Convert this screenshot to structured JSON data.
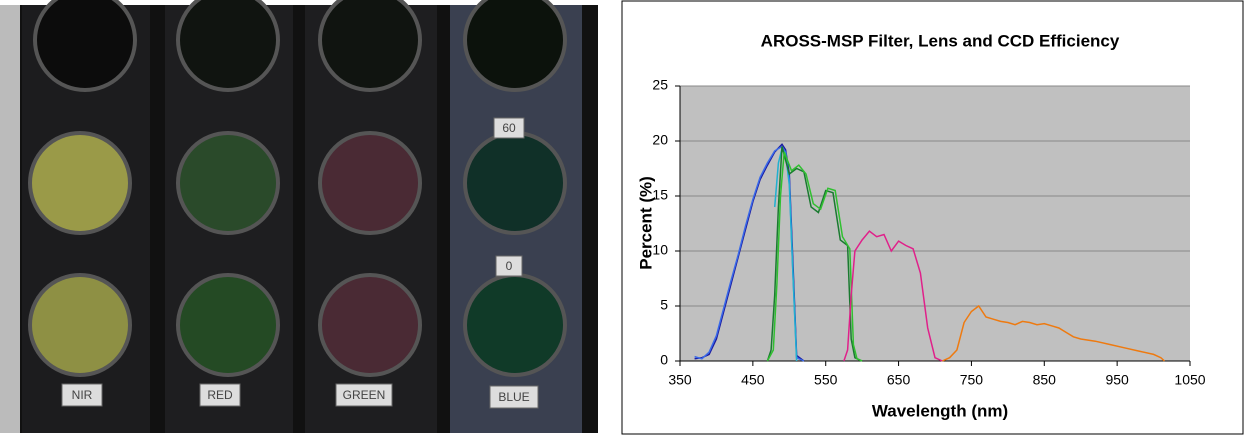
{
  "photo": {
    "labels": [
      "NIR",
      "RED",
      "GREEN",
      "BLUE",
      "60",
      "0"
    ]
  },
  "chart_data": {
    "type": "line",
    "title": "AROSS-MSP Filter, Lens and CCD Efficiency",
    "x_label": "Wavelength (nm)",
    "y_label": "Percent (%)",
    "xlim": [
      350,
      1050
    ],
    "xticks": [
      350,
      450,
      550,
      650,
      750,
      850,
      950,
      1050
    ],
    "ylim": [
      0,
      25
    ],
    "yticks": [
      0,
      5,
      10,
      15,
      20,
      25
    ],
    "grid": true,
    "series": [
      {
        "color": "#1a1aa0",
        "x": [
          370,
          380,
          390,
          400,
          410,
          420,
          430,
          440,
          450,
          460,
          470,
          480,
          490,
          495,
          500,
          505,
          510,
          520
        ],
        "values": [
          0.2,
          0.3,
          0.6,
          2,
          4.5,
          7,
          9.5,
          12,
          14.5,
          16.5,
          17.8,
          19,
          19.7,
          19.2,
          17,
          9,
          0.5,
          0
        ]
      },
      {
        "color": "#3a6ae8",
        "x": [
          370,
          380,
          390,
          400,
          410,
          420,
          430,
          440,
          450,
          460,
          470,
          480,
          490,
          495,
          500,
          505,
          510,
          520
        ],
        "values": [
          0.4,
          0.2,
          0.8,
          2.3,
          4.8,
          7.3,
          9.7,
          12.3,
          14.7,
          16.7,
          18,
          19.1,
          19.5,
          19,
          16.5,
          8,
          0.3,
          0
        ]
      },
      {
        "color": "#20b0d0",
        "x": [
          480,
          485,
          490,
          495,
          500,
          505,
          510
        ],
        "values": [
          14,
          18,
          19.3,
          18.8,
          16,
          8,
          0
        ]
      },
      {
        "color": "#1a7a30",
        "x": [
          470,
          475,
          480,
          485,
          490,
          500,
          510,
          520,
          530,
          540,
          550,
          560,
          570,
          580,
          585,
          590,
          600
        ],
        "values": [
          0,
          1,
          6,
          14,
          19.5,
          17,
          17.5,
          17.2,
          14,
          13.5,
          15.5,
          15.3,
          11,
          10.5,
          2,
          0.3,
          0
        ]
      },
      {
        "color": "#30c030",
        "x": [
          470,
          478,
          483,
          488,
          493,
          503,
          513,
          523,
          533,
          543,
          553,
          563,
          573,
          583,
          588,
          593,
          600
        ],
        "values": [
          0,
          1,
          7,
          15,
          19,
          17.3,
          17.8,
          17,
          14.3,
          13.8,
          15.7,
          15.5,
          11.3,
          10.2,
          1.5,
          0.2,
          0
        ]
      },
      {
        "color": "#e0208a",
        "x": [
          575,
          580,
          585,
          590,
          600,
          610,
          620,
          630,
          640,
          650,
          660,
          670,
          680,
          690,
          700,
          710
        ],
        "values": [
          0,
          1,
          6,
          10,
          11,
          11.8,
          11.3,
          11.5,
          10,
          10.9,
          10.5,
          10.2,
          8,
          3,
          0.3,
          0
        ]
      },
      {
        "color": "#ee7a10",
        "x": [
          710,
          720,
          730,
          740,
          750,
          760,
          770,
          780,
          790,
          800,
          810,
          820,
          830,
          840,
          850,
          860,
          870,
          880,
          890,
          900,
          920,
          940,
          960,
          980,
          1000,
          1010,
          1015
        ],
        "values": [
          0,
          0.3,
          1,
          3.5,
          4.5,
          5,
          4,
          3.8,
          3.6,
          3.5,
          3.3,
          3.6,
          3.5,
          3.3,
          3.4,
          3.2,
          3,
          2.6,
          2.2,
          2,
          1.8,
          1.5,
          1.2,
          0.9,
          0.6,
          0.3,
          0
        ]
      }
    ]
  }
}
